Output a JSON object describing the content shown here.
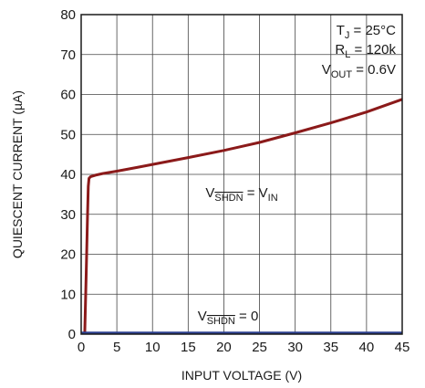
{
  "chart_data": {
    "type": "line",
    "xlabel": "INPUT VOLTAGE (V)",
    "ylabel": "QUIESCENT CURRENT (µA)",
    "xlim": [
      0,
      45
    ],
    "ylim": [
      0,
      80
    ],
    "x_ticks": [
      0,
      5,
      10,
      15,
      20,
      25,
      30,
      35,
      40,
      45
    ],
    "y_ticks": [
      0,
      10,
      20,
      30,
      40,
      50,
      60,
      70,
      80
    ],
    "grid": true,
    "colors": {
      "red": "#8b1a1a",
      "blue": "#2c3f8f"
    },
    "series": [
      {
        "label_main": "V",
        "label_sub": "SHDN",
        "label_rest": " = V",
        "label_rest_sub": "IN",
        "color": "#8b1a1a",
        "x": [
          0.5,
          0.7,
          0.9,
          1.0,
          1.1,
          1.3,
          2.0,
          3.0,
          5.0,
          8.0,
          10.0,
          15.0,
          20.0,
          25.0,
          30.0,
          35.0,
          40.0,
          45.0
        ],
        "y": [
          0,
          15,
          30,
          37,
          39,
          39.4,
          39.8,
          40.2,
          40.8,
          41.8,
          42.5,
          44.2,
          46.0,
          48.0,
          50.4,
          52.9,
          55.6,
          58.8
        ]
      },
      {
        "label_main": "V",
        "label_sub": "SHDN",
        "label_rest": " = 0",
        "color": "#2c3f8f",
        "x": [
          0,
          45
        ],
        "y": [
          0.3,
          0.3
        ]
      }
    ],
    "annotations": {
      "tj": {
        "main": "T",
        "sub": "J",
        "rest": " = 25°C"
      },
      "rl": {
        "main": "R",
        "sub": "L",
        "rest": " = 120k"
      },
      "vout": {
        "main": "V",
        "sub": "OUT",
        "rest": " = 0.6V"
      }
    }
  }
}
